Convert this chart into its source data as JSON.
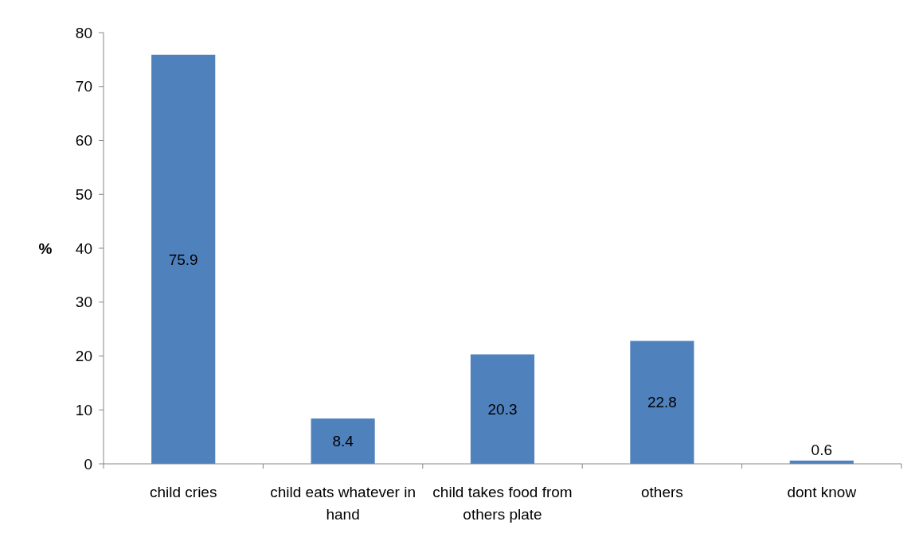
{
  "chart_data": {
    "type": "bar",
    "ylabel": "%",
    "categories": [
      "child cries",
      "child eats whatever in hand",
      "child takes food from others plate",
      "others",
      "dont know"
    ],
    "values": [
      75.9,
      8.4,
      20.3,
      22.8,
      0.6
    ],
    "color": "#4f81bd",
    "ylim": [
      0,
      80
    ],
    "yticks": [
      0,
      10,
      20,
      30,
      40,
      50,
      60,
      70,
      80
    ],
    "grid": false,
    "data_labels": true
  }
}
